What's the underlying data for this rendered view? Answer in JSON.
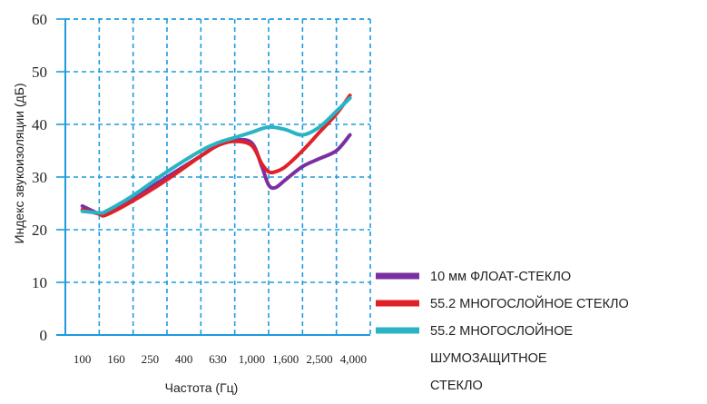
{
  "chart_data": {
    "type": "line",
    "xlabel": "Частота (Гц)",
    "ylabel": "Индекс звукоизоляции (дБ)",
    "ylim": [
      0,
      60
    ],
    "yticks": [
      0,
      10,
      20,
      30,
      40,
      50,
      60
    ],
    "ytick_labels": [
      "0",
      "10",
      "20",
      "30",
      "40",
      "50",
      "60"
    ],
    "categories": [
      "100",
      "160",
      "250",
      "400",
      "630",
      "1,000",
      "1,600",
      "2,500",
      "4,000"
    ],
    "grid": true,
    "legend_position": "bottom-right",
    "series": [
      {
        "name": "10 мм ФЛОАТ-СТЕКЛО",
        "color": "#7b2fa0",
        "x": [
          0.5,
          1.0,
          1.2,
          2.0,
          3.0,
          4.0,
          4.5,
          5.0,
          5.5,
          5.8,
          6.0,
          6.2,
          6.5,
          7.0,
          7.5,
          8.0,
          8.4
        ],
        "y": [
          24.5,
          23.0,
          23.0,
          26.0,
          30.0,
          34.0,
          36.0,
          37.0,
          36.5,
          32.0,
          28.5,
          28.0,
          29.5,
          32.0,
          33.5,
          35.0,
          38.0
        ]
      },
      {
        "name": "55.2 МНОГОСЛОЙНОЕ СТЕКЛО",
        "color": "#e02228",
        "x": [
          0.5,
          1.0,
          1.2,
          2.0,
          3.0,
          4.0,
          4.5,
          5.0,
          5.5,
          5.8,
          6.0,
          6.2,
          6.5,
          7.0,
          7.5,
          8.0,
          8.4
        ],
        "y": [
          23.8,
          23.0,
          22.8,
          25.5,
          29.5,
          34.0,
          36.0,
          36.8,
          36.0,
          32.5,
          31.0,
          31.0,
          32.0,
          35.0,
          38.5,
          42.0,
          45.5
        ]
      },
      {
        "name": "55.2 МНОГОСЛОЙНОЕ ШУМОЗАЩИТНОЕ СТЕКЛО",
        "name_lines": [
          "55.2 МНОГОСЛОЙНОЕ",
          "ШУМОЗАЩИТНОЕ",
          "СТЕКЛО"
        ],
        "color": "#2ab3c4",
        "x": [
          0.5,
          1.0,
          1.2,
          2.0,
          3.0,
          4.0,
          4.5,
          5.0,
          5.5,
          6.0,
          6.5,
          7.0,
          7.5,
          8.0,
          8.4
        ],
        "y": [
          23.5,
          23.2,
          23.5,
          26.5,
          31.0,
          35.0,
          36.5,
          37.5,
          38.5,
          39.5,
          39.0,
          38.0,
          39.5,
          42.5,
          45.0
        ]
      }
    ]
  }
}
